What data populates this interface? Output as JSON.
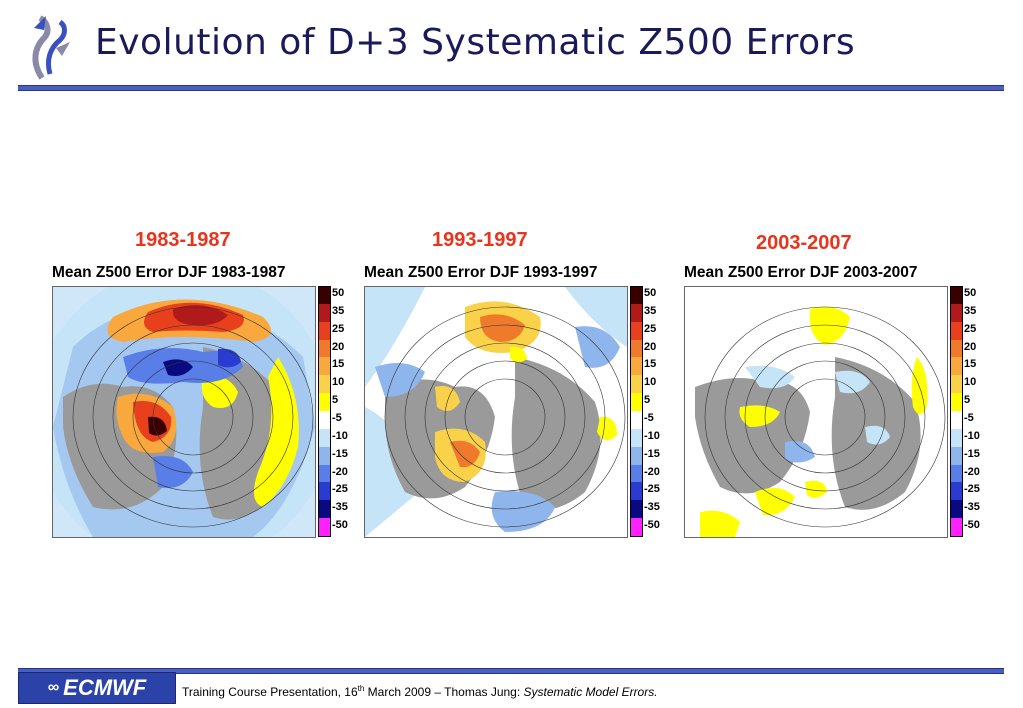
{
  "slide": {
    "title": "Evolution of D+3 Systematic Z500 Errors",
    "footer_prefix": "Training Course Presentation, 16",
    "footer_sup": "th",
    "footer_middle": " March 2009 – Thomas Jung: ",
    "footer_italic": "Systematic Model Errors.",
    "org_logo_text": "ECMWF"
  },
  "panels": [
    {
      "period": "1983-1987",
      "map_title": "Mean Z500 Error DJF 1983-1987"
    },
    {
      "period": "1993-1997",
      "map_title": "Mean Z500 Error DJF 1993-1997"
    },
    {
      "period": "2003-2007",
      "map_title": "Mean Z500 Error DJF 2003-2007"
    }
  ],
  "legend": {
    "labels": [
      "50",
      "35",
      "25",
      "20",
      "15",
      "10",
      "5",
      "-5",
      "-10",
      "-15",
      "-20",
      "-25",
      "-35",
      "-50"
    ],
    "colors": [
      "#3a0000",
      "#b01a1a",
      "#e8401c",
      "#f07a2c",
      "#f8a83c",
      "#fad24a",
      "#ffff00",
      "#ffffff",
      "#c6e4f7",
      "#8fb6ec",
      "#5a7ee8",
      "#2a3cd0",
      "#0a0a80",
      "#ff22ff"
    ]
  },
  "colors": {
    "title": "#1a1a5a",
    "period": "#e8341c",
    "rule": "#4a5fbf"
  }
}
